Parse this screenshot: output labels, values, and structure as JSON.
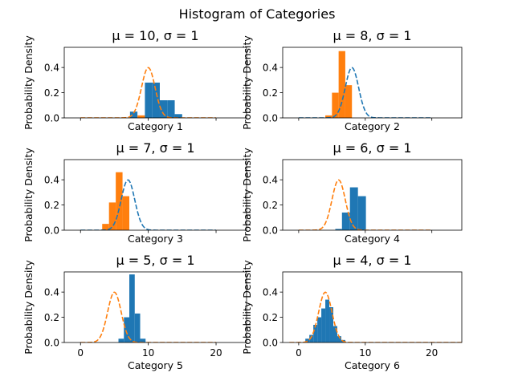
{
  "figure": {
    "suptitle": "Histogram of Categories"
  },
  "chart_data": [
    {
      "type": "bar",
      "title": "μ = 10, σ = 1",
      "xlabel": "Category 1",
      "ylabel": "Probability Density",
      "mu": 10,
      "sigma": 1,
      "xlim": [
        -2.4,
        24.5
      ],
      "ylim": [
        0,
        0.56
      ],
      "xticks": [
        0,
        10,
        20
      ],
      "yticks": [
        0.0,
        0.2,
        0.4
      ],
      "show_xtick_labels": false,
      "bars": [
        {
          "x0": 7.3,
          "x1": 8.4,
          "value": 0.05,
          "color": "#1f77b4"
        },
        {
          "x0": 8.4,
          "x1": 9.5,
          "value": 0.02,
          "color": "#ff7f0e"
        },
        {
          "x0": 9.5,
          "x1": 10.6,
          "value": 0.28,
          "color": "#1f77b4"
        },
        {
          "x0": 10.6,
          "x1": 11.7,
          "value": 0.28,
          "color": "#1f77b4"
        },
        {
          "x0": 11.7,
          "x1": 12.8,
          "value": 0.14,
          "color": "#1f77b4"
        },
        {
          "x0": 12.8,
          "x1": 13.9,
          "value": 0.14,
          "color": "#1f77b4"
        },
        {
          "x0": 13.9,
          "x1": 15.0,
          "value": 0.03,
          "color": "#1f77b4"
        }
      ],
      "curves": [
        {
          "mu": 10,
          "sigma": 1,
          "color": "#ff7f0e",
          "x_range": [
            0,
            20
          ]
        }
      ]
    },
    {
      "type": "bar",
      "title": "μ = 8, σ = 1",
      "xlabel": "Category 2",
      "ylabel": "Probability Density",
      "mu": 8,
      "sigma": 1,
      "xlim": [
        -2.4,
        24.5
      ],
      "ylim": [
        0,
        0.56
      ],
      "xticks": [
        0,
        10,
        20
      ],
      "yticks": [
        0.0,
        0.2,
        0.4
      ],
      "show_xtick_labels": false,
      "bars": [
        {
          "x0": 4.0,
          "x1": 5.0,
          "value": 0.02,
          "color": "#ff7f0e"
        },
        {
          "x0": 5.0,
          "x1": 6.0,
          "value": 0.2,
          "color": "#ff7f0e"
        },
        {
          "x0": 6.0,
          "x1": 7.0,
          "value": 0.53,
          "color": "#ff7f0e"
        },
        {
          "x0": 7.0,
          "x1": 8.0,
          "value": 0.26,
          "color": "#ff7f0e"
        }
      ],
      "curves": [
        {
          "mu": 8,
          "sigma": 1,
          "color": "#1f77b4",
          "x_range": [
            0,
            20
          ]
        }
      ]
    },
    {
      "type": "bar",
      "title": "μ = 7, σ = 1",
      "xlabel": "Category 3",
      "ylabel": "Probability Density",
      "mu": 7,
      "sigma": 1,
      "xlim": [
        -2.4,
        24.5
      ],
      "ylim": [
        0,
        0.56
      ],
      "xticks": [
        0,
        10,
        20
      ],
      "yticks": [
        0.0,
        0.2,
        0.4
      ],
      "show_xtick_labels": false,
      "bars": [
        {
          "x0": 3.2,
          "x1": 4.2,
          "value": 0.05,
          "color": "#ff7f0e"
        },
        {
          "x0": 4.2,
          "x1": 5.2,
          "value": 0.22,
          "color": "#ff7f0e"
        },
        {
          "x0": 5.2,
          "x1": 6.2,
          "value": 0.46,
          "color": "#ff7f0e"
        },
        {
          "x0": 6.2,
          "x1": 7.2,
          "value": 0.27,
          "color": "#ff7f0e"
        }
      ],
      "curves": [
        {
          "mu": 7,
          "sigma": 1,
          "color": "#1f77b4",
          "x_range": [
            0,
            20
          ]
        }
      ]
    },
    {
      "type": "bar",
      "title": "μ = 6, σ = 1",
      "xlabel": "Category 4",
      "ylabel": "Probability Density",
      "mu": 6,
      "sigma": 1,
      "xlim": [
        -2.4,
        24.5
      ],
      "ylim": [
        0,
        0.56
      ],
      "xticks": [
        0,
        10,
        20
      ],
      "yticks": [
        0.0,
        0.2,
        0.4
      ],
      "show_xtick_labels": false,
      "bars": [
        {
          "x0": 5.5,
          "x1": 6.5,
          "value": 0.01,
          "color": "#1f77b4"
        },
        {
          "x0": 6.5,
          "x1": 7.7,
          "value": 0.14,
          "color": "#1f77b4"
        },
        {
          "x0": 7.7,
          "x1": 8.9,
          "value": 0.34,
          "color": "#1f77b4"
        },
        {
          "x0": 8.9,
          "x1": 10.1,
          "value": 0.27,
          "color": "#1f77b4"
        }
      ],
      "curves": [
        {
          "mu": 6,
          "sigma": 1,
          "color": "#ff7f0e",
          "x_range": [
            0,
            20
          ]
        }
      ]
    },
    {
      "type": "bar",
      "title": "μ = 5, σ = 1",
      "xlabel": "Category 5",
      "ylabel": "Probability Density",
      "mu": 5,
      "sigma": 1,
      "xlim": [
        -2.4,
        24.5
      ],
      "ylim": [
        0,
        0.56
      ],
      "xticks": [
        0,
        10,
        20
      ],
      "yticks": [
        0.0,
        0.2,
        0.4
      ],
      "show_xtick_labels": true,
      "bars": [
        {
          "x0": 5.6,
          "x1": 6.4,
          "value": 0.03,
          "color": "#1f77b4"
        },
        {
          "x0": 6.4,
          "x1": 7.2,
          "value": 0.2,
          "color": "#1f77b4"
        },
        {
          "x0": 7.2,
          "x1": 8.0,
          "value": 0.54,
          "color": "#1f77b4"
        },
        {
          "x0": 8.0,
          "x1": 8.8,
          "value": 0.23,
          "color": "#1f77b4"
        },
        {
          "x0": 8.8,
          "x1": 9.6,
          "value": 0.03,
          "color": "#1f77b4"
        }
      ],
      "curves": [
        {
          "mu": 5,
          "sigma": 1,
          "color": "#ff7f0e",
          "x_range": [
            0,
            20
          ]
        }
      ]
    },
    {
      "type": "bar",
      "title": "μ = 4, σ = 1",
      "xlabel": "Category 6",
      "ylabel": "Probability Density",
      "mu": 4,
      "sigma": 1,
      "xlim": [
        -2.4,
        24.5
      ],
      "ylim": [
        0,
        0.56
      ],
      "xticks": [
        0,
        10,
        20
      ],
      "yticks": [
        0.0,
        0.2,
        0.4
      ],
      "show_xtick_labels": true,
      "bars": [
        {
          "x0": 1.0,
          "x1": 1.6,
          "value": 0.03,
          "color": "#1f77b4"
        },
        {
          "x0": 1.6,
          "x1": 2.2,
          "value": 0.06,
          "color": "#1f77b4"
        },
        {
          "x0": 2.2,
          "x1": 2.8,
          "value": 0.14,
          "color": "#1f77b4"
        },
        {
          "x0": 2.8,
          "x1": 3.4,
          "value": 0.2,
          "color": "#1f77b4"
        },
        {
          "x0": 3.4,
          "x1": 4.0,
          "value": 0.27,
          "color": "#1f77b4"
        },
        {
          "x0": 4.0,
          "x1": 4.6,
          "value": 0.34,
          "color": "#1f77b4"
        },
        {
          "x0": 4.6,
          "x1": 5.2,
          "value": 0.28,
          "color": "#1f77b4"
        },
        {
          "x0": 5.2,
          "x1": 5.8,
          "value": 0.13,
          "color": "#1f77b4"
        },
        {
          "x0": 5.8,
          "x1": 6.4,
          "value": 0.05,
          "color": "#1f77b4"
        },
        {
          "x0": 6.4,
          "x1": 7.0,
          "value": 0.02,
          "color": "#1f77b4"
        }
      ],
      "curves": [
        {
          "mu": 4,
          "sigma": 1,
          "color": "#ff7f0e",
          "x_range": [
            -1.4,
            24.5
          ]
        }
      ]
    }
  ]
}
